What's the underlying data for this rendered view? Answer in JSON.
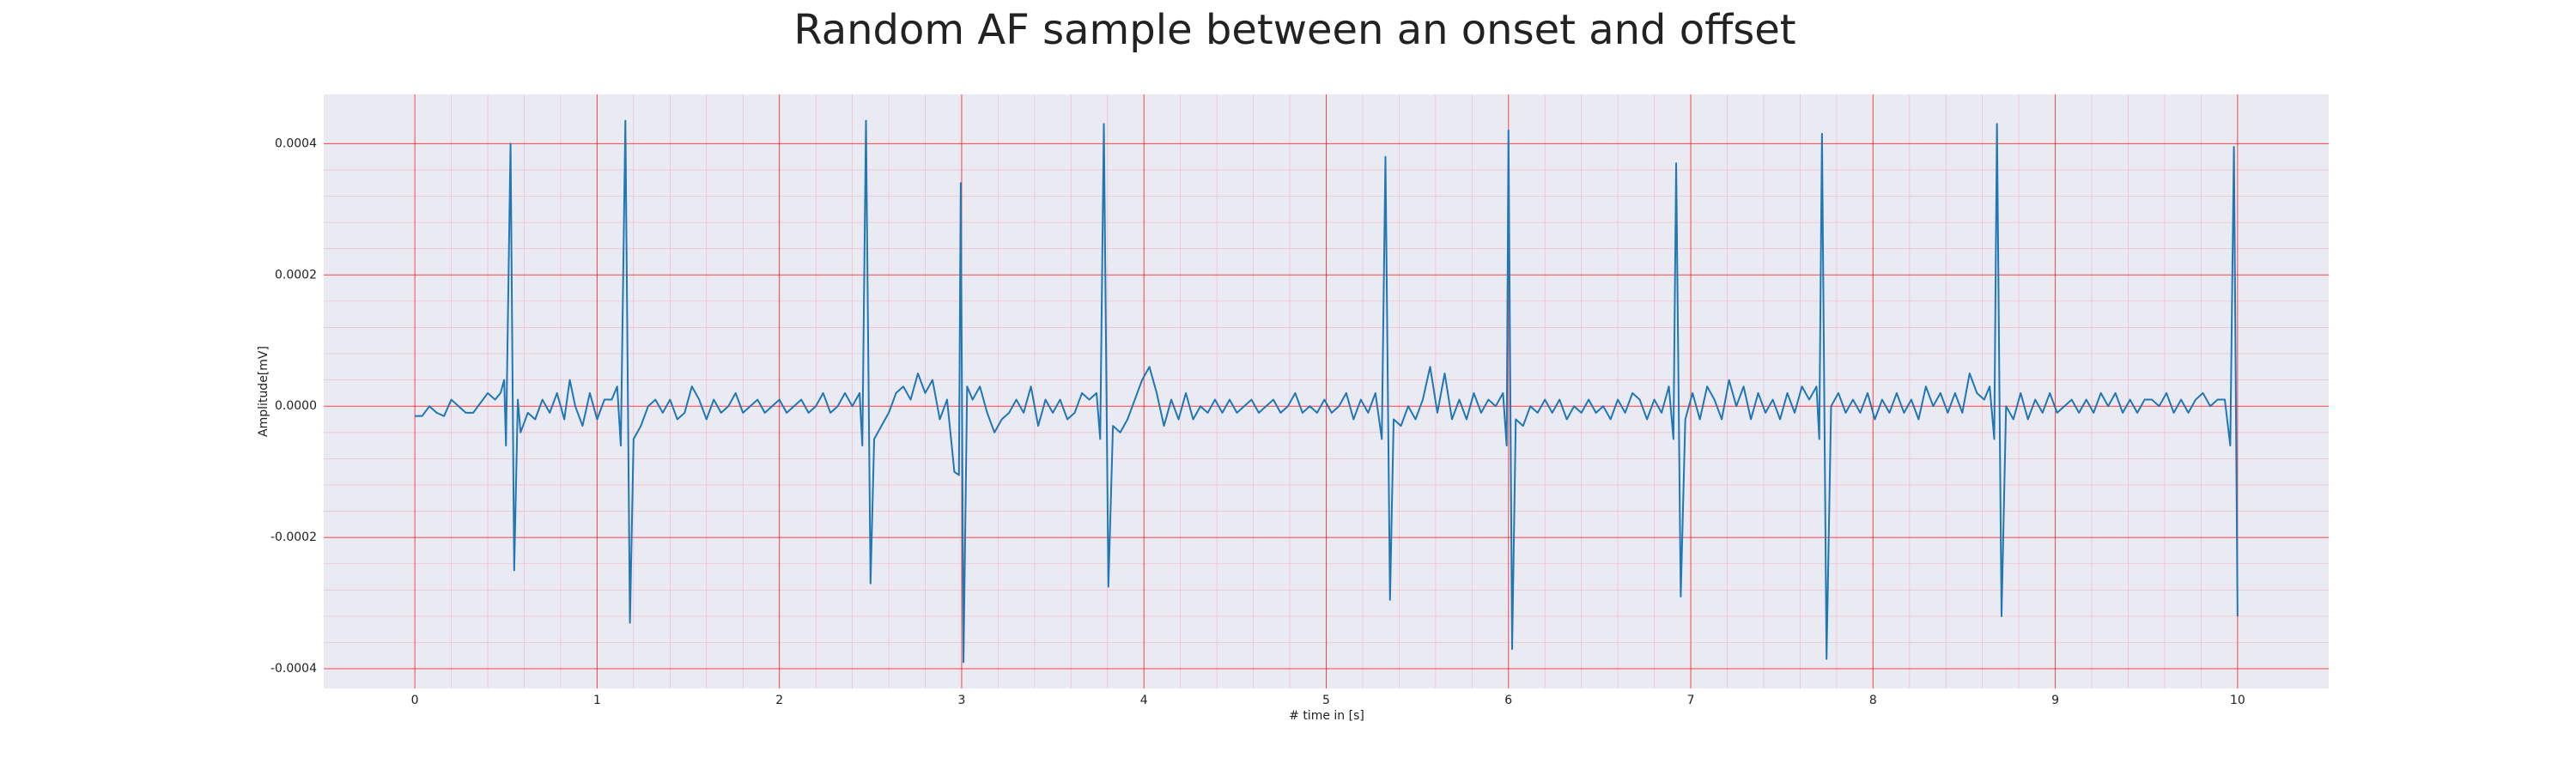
{
  "chart_data": {
    "type": "line",
    "title": "Random AF sample between an onset and offset",
    "xlabel": "# time in [s]",
    "ylabel": "Amplitude[mV]",
    "xlim": [
      -0.5,
      10.5
    ],
    "ylim": [
      -0.00043,
      0.000475
    ],
    "xticks": [
      0,
      1,
      2,
      3,
      4,
      5,
      6,
      7,
      8,
      9,
      10
    ],
    "yticks": [
      {
        "value": -0.0004,
        "label": "-0.0004"
      },
      {
        "value": -0.0002,
        "label": "-0.0002"
      },
      {
        "value": 0,
        "label": "0.0000"
      },
      {
        "value": 0.0002,
        "label": "0.0002"
      },
      {
        "value": 0.0004,
        "label": "0.0004"
      }
    ],
    "grid": true,
    "grid_color": "#ff0000",
    "minor_grid": true,
    "background": "#eaeaf2",
    "series": [
      {
        "color": "#1f77b4",
        "x": [
          0.0,
          0.04,
          0.08,
          0.12,
          0.16,
          0.2,
          0.24,
          0.28,
          0.32,
          0.36,
          0.4,
          0.44,
          0.47,
          0.49,
          0.5,
          0.525,
          0.545,
          0.565,
          0.58,
          0.62,
          0.66,
          0.7,
          0.74,
          0.78,
          0.82,
          0.85,
          0.88,
          0.92,
          0.96,
          1.0,
          1.04,
          1.08,
          1.11,
          1.13,
          1.155,
          1.18,
          1.2,
          1.24,
          1.28,
          1.32,
          1.36,
          1.4,
          1.44,
          1.48,
          1.52,
          1.56,
          1.6,
          1.64,
          1.68,
          1.72,
          1.76,
          1.8,
          1.84,
          1.88,
          1.92,
          1.96,
          2.0,
          2.04,
          2.08,
          2.12,
          2.16,
          2.2,
          2.24,
          2.28,
          2.32,
          2.36,
          2.4,
          2.44,
          2.455,
          2.475,
          2.5,
          2.52,
          2.56,
          2.6,
          2.64,
          2.68,
          2.72,
          2.76,
          2.8,
          2.84,
          2.88,
          2.92,
          2.96,
          2.985,
          2.995,
          3.01,
          3.03,
          3.06,
          3.1,
          3.14,
          3.18,
          3.22,
          3.26,
          3.3,
          3.34,
          3.38,
          3.42,
          3.46,
          3.5,
          3.54,
          3.58,
          3.62,
          3.66,
          3.7,
          3.74,
          3.76,
          3.78,
          3.805,
          3.83,
          3.87,
          3.91,
          3.95,
          3.99,
          4.03,
          4.07,
          4.11,
          4.15,
          4.19,
          4.23,
          4.27,
          4.31,
          4.35,
          4.39,
          4.43,
          4.47,
          4.51,
          4.55,
          4.59,
          4.63,
          4.67,
          4.71,
          4.75,
          4.79,
          4.83,
          4.87,
          4.91,
          4.95,
          4.99,
          5.03,
          5.07,
          5.11,
          5.15,
          5.19,
          5.23,
          5.27,
          5.305,
          5.325,
          5.35,
          5.37,
          5.41,
          5.45,
          5.49,
          5.53,
          5.57,
          5.61,
          5.65,
          5.69,
          5.73,
          5.77,
          5.81,
          5.85,
          5.89,
          5.93,
          5.97,
          5.99,
          6.0,
          6.02,
          6.04,
          6.08,
          6.12,
          6.16,
          6.2,
          6.24,
          6.28,
          6.32,
          6.36,
          6.4,
          6.44,
          6.48,
          6.52,
          6.56,
          6.6,
          6.64,
          6.68,
          6.72,
          6.76,
          6.8,
          6.84,
          6.88,
          6.905,
          6.92,
          6.945,
          6.97,
          7.01,
          7.05,
          7.09,
          7.13,
          7.17,
          7.21,
          7.25,
          7.29,
          7.33,
          7.37,
          7.41,
          7.45,
          7.49,
          7.53,
          7.57,
          7.61,
          7.65,
          7.69,
          7.705,
          7.72,
          7.745,
          7.77,
          7.81,
          7.85,
          7.89,
          7.93,
          7.97,
          8.01,
          8.05,
          8.09,
          8.13,
          8.17,
          8.21,
          8.25,
          8.29,
          8.33,
          8.37,
          8.41,
          8.45,
          8.49,
          8.53,
          8.57,
          8.61,
          8.64,
          8.665,
          8.68,
          8.705,
          8.73,
          8.77,
          8.81,
          8.85,
          8.89,
          8.93,
          8.97,
          9.01,
          9.05,
          9.09,
          9.13,
          9.17,
          9.21,
          9.25,
          9.29,
          9.33,
          9.37,
          9.41,
          9.45,
          9.49,
          9.53,
          9.57,
          9.61,
          9.65,
          9.69,
          9.73,
          9.77,
          9.81,
          9.85,
          9.89,
          9.93,
          9.96,
          9.98,
          10.0
        ],
        "values": [
          -1.5e-05,
          -1.5e-05,
          0.0,
          -1e-05,
          -1.5e-05,
          1e-05,
          0.0,
          -1e-05,
          -1e-05,
          5e-06,
          2e-05,
          1e-05,
          2e-05,
          4e-05,
          -6e-05,
          0.0004,
          -0.00025,
          1e-05,
          -4e-05,
          -1e-05,
          -2e-05,
          1e-05,
          -1e-05,
          2e-05,
          -2e-05,
          4e-05,
          0.0,
          -3e-05,
          2e-05,
          -2e-05,
          1e-05,
          1e-05,
          3e-05,
          -6e-05,
          0.000435,
          -0.00033,
          -5e-05,
          -3e-05,
          0.0,
          1e-05,
          -1e-05,
          1e-05,
          -2e-05,
          -1e-05,
          3e-05,
          1e-05,
          -2e-05,
          1e-05,
          -1e-05,
          0.0,
          2e-05,
          -1e-05,
          0.0,
          1e-05,
          -1e-05,
          0.0,
          1e-05,
          -1e-05,
          0.0,
          1e-05,
          -1e-05,
          0.0,
          2e-05,
          -1e-05,
          0.0,
          2e-05,
          0.0,
          2e-05,
          -6e-05,
          0.000435,
          -0.00027,
          -5e-05,
          -3e-05,
          -1e-05,
          2e-05,
          3e-05,
          1e-05,
          5e-05,
          2e-05,
          4e-05,
          -2e-05,
          1e-05,
          -0.0001,
          -0.000105,
          0.00034,
          -0.00039,
          3e-05,
          1e-05,
          3e-05,
          -1e-05,
          -4e-05,
          -2e-05,
          -1e-05,
          1e-05,
          -1e-05,
          3e-05,
          -3e-05,
          1e-05,
          -1e-05,
          1e-05,
          -2e-05,
          -1e-05,
          2e-05,
          1e-05,
          2e-05,
          -5e-05,
          0.00043,
          -0.000275,
          -3e-05,
          -4e-05,
          -2e-05,
          1e-05,
          4e-05,
          6e-05,
          2e-05,
          -3e-05,
          1e-05,
          -2e-05,
          2e-05,
          -2e-05,
          0.0,
          -1e-05,
          1e-05,
          -1e-05,
          1e-05,
          -1e-05,
          0.0,
          1e-05,
          -1e-05,
          0.0,
          1e-05,
          -1e-05,
          0.0,
          2e-05,
          -1e-05,
          0.0,
          -1e-05,
          1e-05,
          -1e-05,
          0.0,
          2e-05,
          -2e-05,
          1e-05,
          -1e-05,
          2e-05,
          -5e-05,
          0.00038,
          -0.000295,
          -2e-05,
          -3e-05,
          0.0,
          -2e-05,
          1e-05,
          6e-05,
          -1e-05,
          5e-05,
          -2e-05,
          1e-05,
          -2e-05,
          2e-05,
          -1e-05,
          1e-05,
          0.0,
          2e-05,
          -6e-05,
          0.00042,
          -0.00037,
          -2e-05,
          -3e-05,
          0.0,
          -1e-05,
          1e-05,
          -1e-05,
          1e-05,
          -2e-05,
          0.0,
          -1e-05,
          1e-05,
          -1e-05,
          0.0,
          -2e-05,
          1e-05,
          -1e-05,
          2e-05,
          1e-05,
          -2e-05,
          1e-05,
          -1e-05,
          3e-05,
          -5e-05,
          0.00037,
          -0.00029,
          -2e-05,
          2e-05,
          -2e-05,
          3e-05,
          1e-05,
          -2e-05,
          4e-05,
          0.0,
          3e-05,
          -2e-05,
          2e-05,
          -1e-05,
          1e-05,
          -2e-05,
          2e-05,
          -1e-05,
          3e-05,
          1e-05,
          3e-05,
          -5e-05,
          0.000415,
          -0.000385,
          0.0,
          2e-05,
          -1e-05,
          1e-05,
          -1e-05,
          2e-05,
          -2e-05,
          1e-05,
          -1e-05,
          2e-05,
          -1e-05,
          1e-05,
          -2e-05,
          3e-05,
          0.0,
          2e-05,
          -1e-05,
          2e-05,
          -1e-05,
          5e-05,
          2e-05,
          1e-05,
          3e-05,
          -5e-05,
          0.00043,
          -0.00032,
          0.0,
          -2e-05,
          2e-05,
          -2e-05,
          1e-05,
          -1e-05,
          2e-05,
          -1e-05,
          0.0,
          1e-05,
          -1e-05,
          1e-05,
          -1e-05,
          2e-05,
          0.0,
          2e-05,
          -1e-05,
          1e-05,
          -1e-05,
          1e-05,
          1e-05,
          0.0,
          2e-05,
          -1e-05,
          1e-05,
          -1e-05,
          1e-05,
          2e-05,
          0.0,
          1e-05,
          1e-05,
          -6e-05,
          0.000395,
          -0.00032
        ]
      }
    ]
  }
}
